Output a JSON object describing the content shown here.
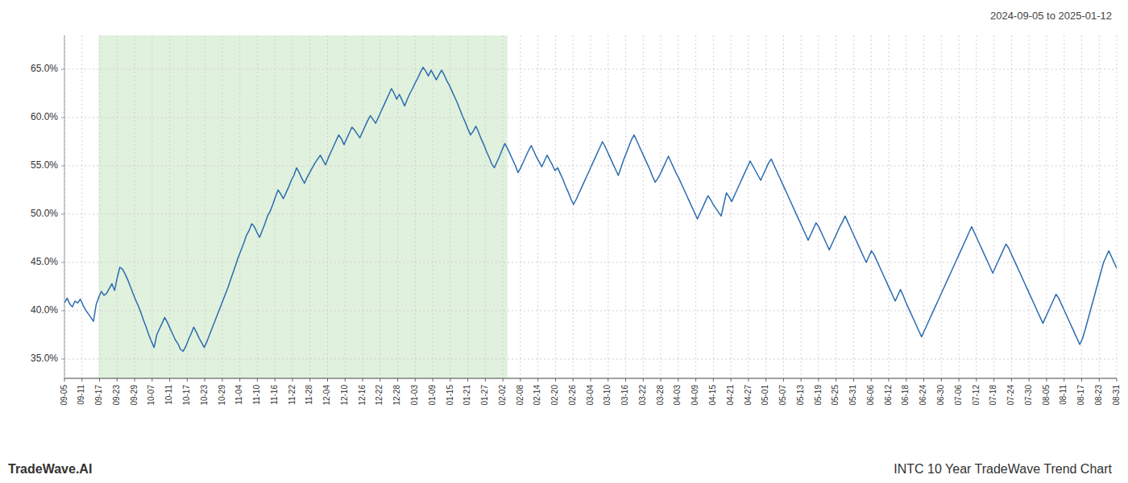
{
  "chart_data": {
    "type": "line",
    "title": "INTC 10 Year TradeWave Trend Chart",
    "subtitle": "2024-09-05 to 2025-01-12",
    "annotations": [
      "TradeWave.AI"
    ],
    "color": "#2b6cb0",
    "grid": true,
    "highlight": {
      "start": 13,
      "end": 168,
      "color": "#d6ecd2"
    },
    "xlim": [
      0,
      399
    ],
    "xticks": [
      {
        "value": 0,
        "label": "09-05"
      },
      {
        "value": 6.65,
        "label": "09-11"
      },
      {
        "value": 13.3,
        "label": "09-17"
      },
      {
        "value": 19.95,
        "label": "09-23"
      },
      {
        "value": 26.6,
        "label": "09-29"
      },
      {
        "value": 33.25,
        "label": "10-07"
      },
      {
        "value": 39.9,
        "label": "10-11"
      },
      {
        "value": 46.55,
        "label": "10-17"
      },
      {
        "value": 53.2,
        "label": "10-23"
      },
      {
        "value": 59.85,
        "label": "10-29"
      },
      {
        "value": 66.5,
        "label": "11-04"
      },
      {
        "value": 73.15,
        "label": "11-10"
      },
      {
        "value": 79.8,
        "label": "11-16"
      },
      {
        "value": 86.45,
        "label": "11-22"
      },
      {
        "value": 93.1,
        "label": "11-28"
      },
      {
        "value": 99.75,
        "label": "12-04"
      },
      {
        "value": 106.4,
        "label": "12-10"
      },
      {
        "value": 113.05,
        "label": "12-16"
      },
      {
        "value": 119.7,
        "label": "12-22"
      },
      {
        "value": 126.35,
        "label": "12-28"
      },
      {
        "value": 133,
        "label": "01-03"
      },
      {
        "value": 139.65,
        "label": "01-09"
      },
      {
        "value": 146.3,
        "label": "01-15"
      },
      {
        "value": 152.95,
        "label": "01-21"
      },
      {
        "value": 159.6,
        "label": "01-27"
      },
      {
        "value": 166.25,
        "label": "02-02"
      },
      {
        "value": 172.9,
        "label": "02-08"
      },
      {
        "value": 179.55,
        "label": "02-14"
      },
      {
        "value": 186.2,
        "label": "02-20"
      },
      {
        "value": 192.85,
        "label": "02-26"
      },
      {
        "value": 199.5,
        "label": "03-04"
      },
      {
        "value": 206.15,
        "label": "03-10"
      },
      {
        "value": 212.8,
        "label": "03-16"
      },
      {
        "value": 219.45,
        "label": "03-22"
      },
      {
        "value": 226.1,
        "label": "03-28"
      },
      {
        "value": 232.75,
        "label": "04-03"
      },
      {
        "value": 239.4,
        "label": "04-09"
      },
      {
        "value": 246.05,
        "label": "04-15"
      },
      {
        "value": 252.7,
        "label": "04-21"
      },
      {
        "value": 259.35,
        "label": "04-27"
      },
      {
        "value": 266,
        "label": "05-01"
      },
      {
        "value": 272.65,
        "label": "05-07"
      },
      {
        "value": 279.3,
        "label": "05-13"
      },
      {
        "value": 285.95,
        "label": "05-19"
      },
      {
        "value": 292.6,
        "label": "05-25"
      },
      {
        "value": 299.25,
        "label": "05-31"
      },
      {
        "value": 305.9,
        "label": "06-06"
      },
      {
        "value": 312.55,
        "label": "06-12"
      },
      {
        "value": 319.2,
        "label": "06-18"
      },
      {
        "value": 325.85,
        "label": "06-24"
      },
      {
        "value": 332.5,
        "label": "06-30"
      },
      {
        "value": 339.15,
        "label": "07-06"
      },
      {
        "value": 345.8,
        "label": "07-12"
      },
      {
        "value": 352.45,
        "label": "07-18"
      },
      {
        "value": 359.1,
        "label": "07-24"
      },
      {
        "value": 365.75,
        "label": "07-30"
      },
      {
        "value": 372.4,
        "label": "08-05"
      },
      {
        "value": 379.05,
        "label": "08-11"
      },
      {
        "value": 385.7,
        "label": "08-17"
      },
      {
        "value": 392.35,
        "label": "08-23"
      },
      {
        "value": 399,
        "label": "08-31"
      }
    ],
    "ylim": [
      0.33,
      0.685
    ],
    "yticks": [
      {
        "value": 0.35,
        "label": "35.0%"
      },
      {
        "value": 0.4,
        "label": "40.0%"
      },
      {
        "value": 0.45,
        "label": "45.0%"
      },
      {
        "value": 0.5,
        "label": "50.0%"
      },
      {
        "value": 0.55,
        "label": "55.0%"
      },
      {
        "value": 0.6,
        "label": "60.0%"
      },
      {
        "value": 0.65,
        "label": "65.0%"
      }
    ],
    "x": [
      0,
      1,
      2,
      3,
      4,
      5,
      6,
      7,
      8,
      9,
      10,
      11,
      12,
      13,
      14,
      15,
      16,
      17,
      18,
      19,
      20,
      21,
      22,
      23,
      24,
      25,
      26,
      27,
      28,
      29,
      30,
      31,
      32,
      33,
      34,
      35,
      36,
      37,
      38,
      39,
      40,
      41,
      42,
      43,
      44,
      45,
      46,
      47,
      48,
      49,
      50,
      51,
      52,
      53,
      54,
      55,
      56,
      57,
      58,
      59,
      60,
      61,
      62,
      63,
      64,
      65,
      66,
      67,
      68,
      69,
      70,
      71,
      72,
      73,
      74,
      75,
      76,
      77,
      78,
      79,
      80,
      81,
      82,
      83,
      84,
      85,
      86,
      87,
      88,
      89,
      90,
      91,
      92,
      93,
      94,
      95,
      96,
      97,
      98,
      99,
      100,
      101,
      102,
      103,
      104,
      105,
      106,
      107,
      108,
      109,
      110,
      111,
      112,
      113,
      114,
      115,
      116,
      117,
      118,
      119,
      120,
      121,
      122,
      123,
      124,
      125,
      126,
      127,
      128,
      129,
      130,
      131,
      132,
      133,
      134,
      135,
      136,
      137,
      138,
      139,
      140,
      141,
      142,
      143,
      144,
      145,
      146,
      147,
      148,
      149,
      150,
      151,
      152,
      153,
      154,
      155,
      156,
      157,
      158,
      159,
      160,
      161,
      162,
      163,
      164,
      165,
      166,
      167,
      168,
      169,
      170,
      171,
      172,
      173,
      174,
      175,
      176,
      177,
      178,
      179,
      180,
      181,
      182,
      183,
      184,
      185,
      186,
      187,
      188,
      189,
      190,
      191,
      192,
      193,
      194,
      195,
      196,
      197,
      198,
      199,
      200,
      201,
      202,
      203,
      204,
      205,
      206,
      207,
      208,
      209,
      210,
      211,
      212,
      213,
      214,
      215,
      216,
      217,
      218,
      219,
      220,
      221,
      222,
      223,
      224,
      225,
      226,
      227,
      228,
      229,
      230,
      231,
      232,
      233,
      234,
      235,
      236,
      237,
      238,
      239,
      240,
      241,
      242,
      243,
      244,
      245,
      246,
      247,
      248,
      249,
      250,
      251,
      252,
      253,
      254,
      255,
      256,
      257,
      258,
      259,
      260,
      261,
      262,
      263,
      264,
      265,
      266,
      267,
      268,
      269,
      270,
      271,
      272,
      273,
      274,
      275,
      276,
      277,
      278,
      279,
      280,
      281,
      282,
      283,
      284,
      285,
      286,
      287,
      288,
      289,
      290,
      291,
      292,
      293,
      294,
      295,
      296,
      297,
      298,
      299,
      300,
      301,
      302,
      303,
      304,
      305,
      306,
      307,
      308,
      309,
      310,
      311,
      312,
      313,
      314,
      315,
      316,
      317,
      318,
      319,
      320,
      321,
      322,
      323,
      324,
      325,
      326,
      327,
      328,
      329,
      330,
      331,
      332,
      333,
      334,
      335,
      336,
      337,
      338,
      339,
      340,
      341,
      342,
      343,
      344,
      345,
      346,
      347,
      348,
      349,
      350,
      351,
      352,
      353,
      354,
      355,
      356,
      357,
      358,
      359,
      360,
      361,
      362,
      363,
      364,
      365,
      366,
      367,
      368,
      369,
      370,
      371,
      372,
      373,
      374,
      375,
      376,
      377,
      378,
      379,
      380,
      381,
      382,
      383,
      384,
      385,
      386,
      387,
      388,
      389,
      390,
      391,
      392,
      393,
      394,
      395,
      396,
      397,
      398,
      399
    ],
    "values": [
      0.408,
      0.413,
      0.407,
      0.404,
      0.41,
      0.408,
      0.412,
      0.406,
      0.401,
      0.397,
      0.393,
      0.389,
      0.406,
      0.414,
      0.42,
      0.416,
      0.418,
      0.423,
      0.428,
      0.421,
      0.434,
      0.445,
      0.443,
      0.438,
      0.432,
      0.425,
      0.418,
      0.411,
      0.405,
      0.398,
      0.39,
      0.383,
      0.375,
      0.368,
      0.362,
      0.375,
      0.381,
      0.387,
      0.393,
      0.388,
      0.382,
      0.376,
      0.37,
      0.366,
      0.36,
      0.358,
      0.363,
      0.37,
      0.376,
      0.383,
      0.378,
      0.372,
      0.367,
      0.362,
      0.368,
      0.375,
      0.382,
      0.389,
      0.396,
      0.403,
      0.41,
      0.417,
      0.424,
      0.432,
      0.44,
      0.448,
      0.456,
      0.463,
      0.47,
      0.478,
      0.483,
      0.49,
      0.487,
      0.481,
      0.476,
      0.483,
      0.49,
      0.498,
      0.503,
      0.51,
      0.518,
      0.525,
      0.521,
      0.516,
      0.522,
      0.528,
      0.535,
      0.54,
      0.548,
      0.543,
      0.537,
      0.532,
      0.538,
      0.543,
      0.548,
      0.553,
      0.557,
      0.561,
      0.556,
      0.551,
      0.558,
      0.564,
      0.57,
      0.576,
      0.582,
      0.578,
      0.572,
      0.578,
      0.584,
      0.59,
      0.587,
      0.583,
      0.579,
      0.585,
      0.591,
      0.597,
      0.602,
      0.598,
      0.594,
      0.6,
      0.606,
      0.612,
      0.618,
      0.624,
      0.63,
      0.625,
      0.619,
      0.624,
      0.618,
      0.612,
      0.619,
      0.625,
      0.63,
      0.636,
      0.641,
      0.647,
      0.652,
      0.648,
      0.643,
      0.649,
      0.644,
      0.639,
      0.644,
      0.649,
      0.644,
      0.638,
      0.633,
      0.627,
      0.621,
      0.615,
      0.608,
      0.601,
      0.595,
      0.588,
      0.582,
      0.586,
      0.591,
      0.585,
      0.578,
      0.572,
      0.565,
      0.559,
      0.552,
      0.548,
      0.554,
      0.56,
      0.567,
      0.573,
      0.568,
      0.562,
      0.556,
      0.55,
      0.543,
      0.548,
      0.554,
      0.56,
      0.566,
      0.571,
      0.565,
      0.559,
      0.554,
      0.549,
      0.555,
      0.561,
      0.556,
      0.551,
      0.545,
      0.548,
      0.542,
      0.536,
      0.529,
      0.523,
      0.516,
      0.51,
      0.515,
      0.521,
      0.527,
      0.533,
      0.539,
      0.545,
      0.551,
      0.557,
      0.563,
      0.569,
      0.575,
      0.57,
      0.564,
      0.558,
      0.552,
      0.546,
      0.54,
      0.548,
      0.556,
      0.563,
      0.57,
      0.577,
      0.582,
      0.576,
      0.57,
      0.564,
      0.558,
      0.552,
      0.546,
      0.539,
      0.533,
      0.537,
      0.542,
      0.548,
      0.554,
      0.56,
      0.554,
      0.548,
      0.542,
      0.537,
      0.531,
      0.525,
      0.519,
      0.513,
      0.507,
      0.501,
      0.495,
      0.501,
      0.507,
      0.513,
      0.519,
      0.515,
      0.51,
      0.506,
      0.502,
      0.498,
      0.51,
      0.522,
      0.518,
      0.513,
      0.519,
      0.525,
      0.531,
      0.537,
      0.543,
      0.549,
      0.555,
      0.55,
      0.545,
      0.54,
      0.535,
      0.541,
      0.547,
      0.553,
      0.557,
      0.551,
      0.545,
      0.539,
      0.533,
      0.527,
      0.521,
      0.515,
      0.509,
      0.503,
      0.497,
      0.491,
      0.485,
      0.479,
      0.473,
      0.479,
      0.485,
      0.491,
      0.487,
      0.481,
      0.475,
      0.469,
      0.463,
      0.469,
      0.475,
      0.481,
      0.487,
      0.492,
      0.498,
      0.492,
      0.486,
      0.48,
      0.474,
      0.468,
      0.462,
      0.456,
      0.45,
      0.456,
      0.462,
      0.458,
      0.452,
      0.446,
      0.44,
      0.434,
      0.428,
      0.422,
      0.416,
      0.41,
      0.416,
      0.422,
      0.416,
      0.409,
      0.403,
      0.397,
      0.391,
      0.385,
      0.379,
      0.373,
      0.379,
      0.385,
      0.391,
      0.397,
      0.403,
      0.409,
      0.415,
      0.421,
      0.427,
      0.433,
      0.439,
      0.445,
      0.451,
      0.457,
      0.463,
      0.469,
      0.475,
      0.481,
      0.487,
      0.481,
      0.475,
      0.469,
      0.463,
      0.457,
      0.451,
      0.445,
      0.439,
      0.445,
      0.451,
      0.457,
      0.463,
      0.469,
      0.465,
      0.459,
      0.453,
      0.447,
      0.441,
      0.435,
      0.429,
      0.423,
      0.417,
      0.411,
      0.405,
      0.399,
      0.393,
      0.387,
      0.393,
      0.399,
      0.405,
      0.411,
      0.417,
      0.413,
      0.407,
      0.401,
      0.395,
      0.389,
      0.383,
      0.377,
      0.371,
      0.365,
      0.371,
      0.38,
      0.39,
      0.4,
      0.41,
      0.42,
      0.43,
      0.44,
      0.45,
      0.456,
      0.462,
      0.456,
      0.45,
      0.444
    ]
  }
}
